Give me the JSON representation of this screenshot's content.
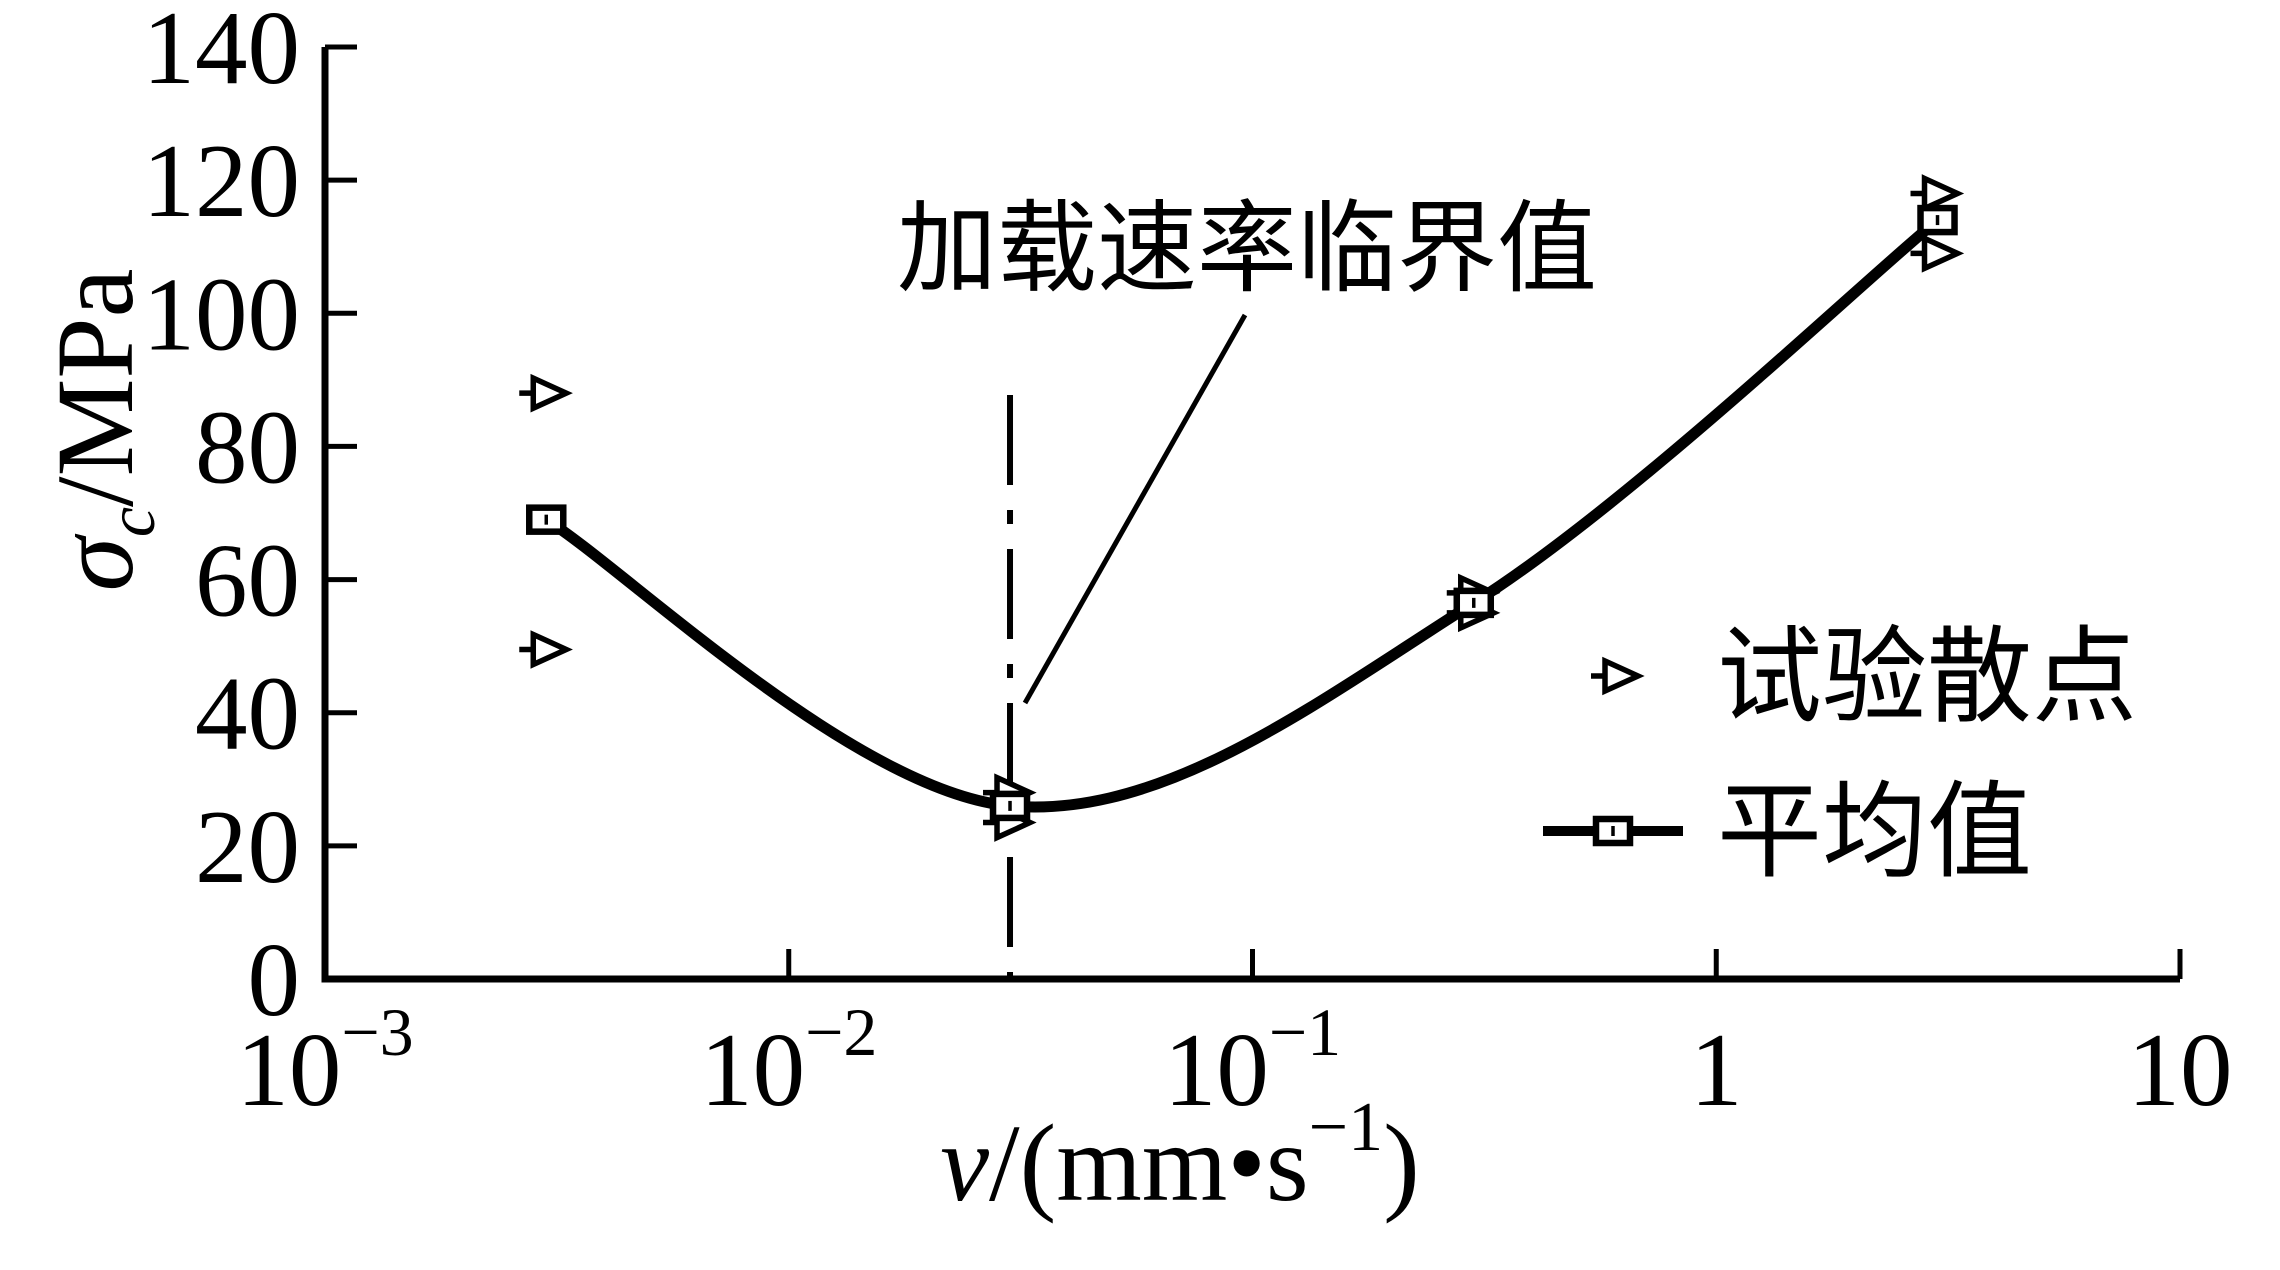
{
  "chart_data": {
    "type": "scatter",
    "title": "",
    "x_scale": "log",
    "grid": false,
    "xlim": [
      0.001,
      10
    ],
    "ylim": [
      0,
      140
    ],
    "x_ticks": [
      {
        "v": 0.001,
        "base": "10",
        "exp": "−3"
      },
      {
        "v": 0.01,
        "base": "10",
        "exp": "−2"
      },
      {
        "v": 0.1,
        "base": "10",
        "exp": "−1"
      },
      {
        "v": 1,
        "base": "1",
        "exp": ""
      },
      {
        "v": 10,
        "base": "10",
        "exp": ""
      }
    ],
    "y_ticks": [
      0,
      20,
      40,
      60,
      80,
      100,
      120,
      140
    ],
    "xlabel": {
      "variable": "v",
      "unit_prefix": "/(mm•s",
      "unit_exponent": "−1",
      "unit_suffix": ")"
    },
    "ylabel": {
      "symbol": "σ",
      "subscript": "c",
      "unit": "/MPa"
    },
    "series": [
      {
        "name": "试验散点",
        "marker": "triangle-right",
        "line": false,
        "points": [
          [
            0.003,
            88
          ],
          [
            0.003,
            49.5
          ],
          [
            0.03,
            28
          ],
          [
            0.03,
            23.5
          ],
          [
            0.3,
            58
          ],
          [
            0.3,
            55
          ],
          [
            3,
            118
          ],
          [
            3,
            109
          ]
        ]
      },
      {
        "name": "平均值",
        "marker": "square",
        "line": true,
        "points": [
          [
            0.003,
            69
          ],
          [
            0.03,
            26
          ],
          [
            0.3,
            56.5
          ],
          [
            3,
            114
          ]
        ]
      }
    ],
    "annotation": {
      "text": "加载速率临界值",
      "critical_x": 0.03
    },
    "legend": {
      "position": "right-middle",
      "entries": [
        "试验散点",
        "平均值"
      ]
    },
    "colors": {
      "foreground": "#000000",
      "background": "#ffffff"
    }
  }
}
